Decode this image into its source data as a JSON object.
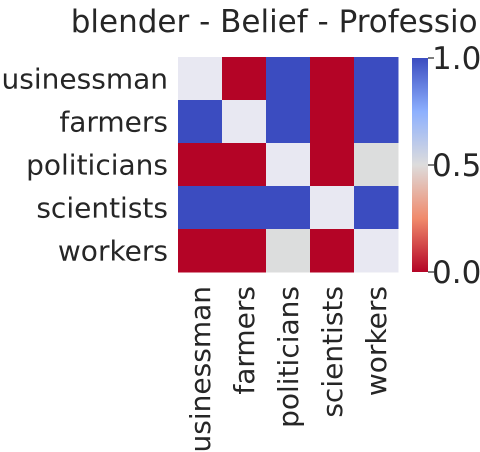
{
  "chart_data": {
    "type": "heatmap",
    "title": "blender - Belief - Profession",
    "row_labels": [
      "businessman",
      "farmers",
      "politicians",
      "scientists",
      "workers"
    ],
    "col_labels": [
      "businessman",
      "farmers",
      "politicians",
      "scientists",
      "workers"
    ],
    "values": [
      [
        0.5,
        0.0,
        1.0,
        0.0,
        1.0
      ],
      [
        1.0,
        0.5,
        1.0,
        0.0,
        1.0
      ],
      [
        0.0,
        0.0,
        0.5,
        0.0,
        0.6
      ],
      [
        1.0,
        1.0,
        1.0,
        0.5,
        1.0
      ],
      [
        0.0,
        0.0,
        0.6,
        0.0,
        0.5
      ]
    ],
    "colorbar": {
      "min": 0.0,
      "max": 1.0,
      "ticks": [
        0.0,
        0.5,
        1.0
      ],
      "tick_labels": [
        "0.0",
        "0.5",
        "1.0"
      ],
      "colormap": "coolwarm_r"
    }
  }
}
